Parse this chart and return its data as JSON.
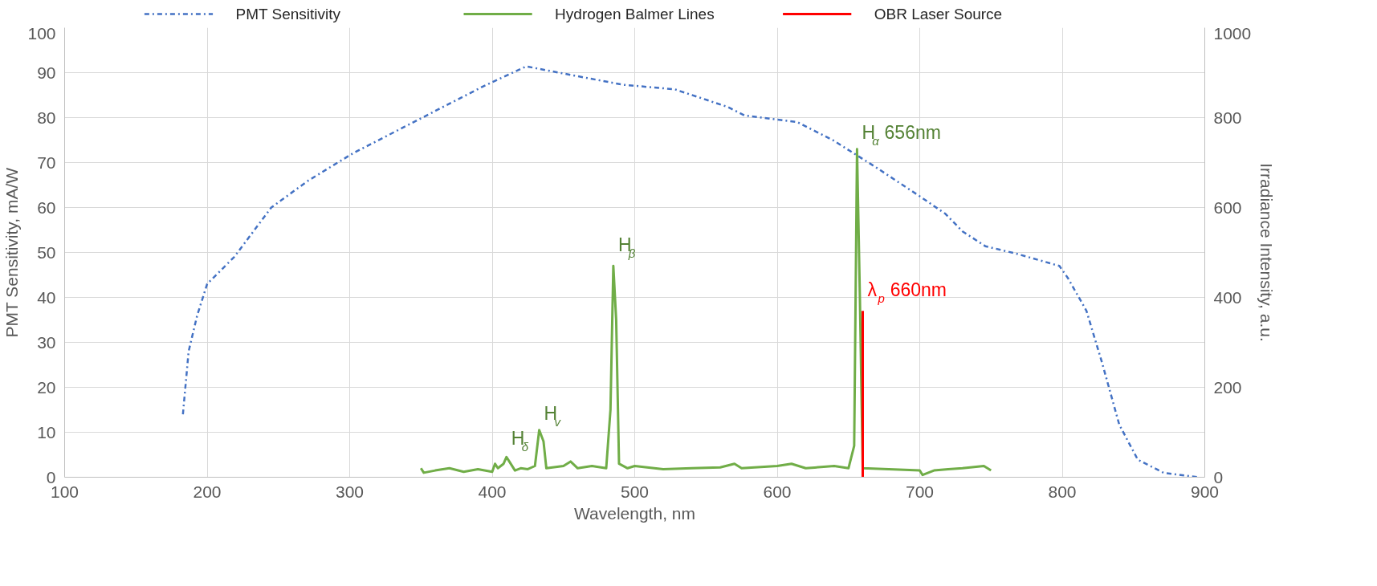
{
  "chart_data": {
    "type": "line",
    "xlabel": "Wavelength, nm",
    "ylabel": "PMT Sensitivity, mA/W",
    "y2label": "Irradiance Intensity, a.u.",
    "xlim": [
      100,
      900
    ],
    "xticks": [
      100,
      200,
      300,
      400,
      500,
      600,
      700,
      800,
      900
    ],
    "ylim": [
      0,
      100
    ],
    "yticks": [
      0,
      10,
      20,
      30,
      40,
      50,
      60,
      70,
      80,
      90,
      100
    ],
    "y2lim": [
      0,
      1000
    ],
    "y2ticks": [
      0,
      200,
      400,
      600,
      800,
      1000
    ],
    "grid": true,
    "legend": "top",
    "series": [
      {
        "name": "PMT Sensitivity",
        "color": "#4472c4",
        "line_style": "dashdot",
        "x": [
          183,
          187,
          193,
          200,
          219,
          245,
          271,
          302,
          351,
          394,
          424,
          455,
          492,
          528,
          565,
          577,
          614,
          639,
          669,
          700,
          718,
          730,
          746,
          767,
          798,
          804,
          817,
          828,
          840,
          853,
          871,
          896
        ],
        "values": [
          14,
          28,
          36,
          43,
          49,
          60,
          66,
          72,
          80,
          87,
          91.4,
          89.5,
          87.3,
          86.3,
          82.4,
          80.5,
          79,
          75,
          69,
          62.5,
          58.6,
          54.7,
          51.4,
          49.8,
          47,
          44.3,
          37,
          25.4,
          11.7,
          3.9,
          1,
          0
        ]
      },
      {
        "name": "Hydrogen Balmer Lines",
        "color": "#70ad47",
        "axis": "y2",
        "line_style": "solid",
        "x": [
          350,
          352,
          360,
          370,
          380,
          390,
          400,
          402,
          404,
          408,
          410,
          412,
          416,
          420,
          425,
          430,
          433,
          436,
          438,
          450,
          455,
          460,
          470,
          480,
          483,
          485,
          487,
          489,
          495,
          500,
          520,
          540,
          560,
          570,
          575,
          600,
          610,
          620,
          640,
          650,
          654,
          656,
          658,
          660,
          700,
          702,
          710,
          720,
          730,
          745,
          750
        ],
        "values": [
          20,
          10,
          15,
          20,
          12,
          18,
          12,
          30,
          20,
          30,
          45,
          35,
          15,
          20,
          18,
          25,
          105,
          80,
          20,
          25,
          35,
          20,
          25,
          20,
          150,
          470,
          350,
          30,
          20,
          25,
          18,
          20,
          22,
          30,
          20,
          25,
          30,
          20,
          25,
          20,
          70,
          730,
          400,
          20,
          15,
          5,
          15,
          18,
          20,
          25,
          15
        ]
      },
      {
        "name": "OBR Laser Source",
        "color": "#ff0000",
        "axis": "y2",
        "line_style": "solid",
        "x": [
          660,
          660
        ],
        "values": [
          0,
          370
        ]
      }
    ],
    "annotations": [
      {
        "text": "H$_{δ}$",
        "x": 410,
        "y": 5
      },
      {
        "text": "H$_{v}$",
        "x": 433,
        "y": 10.5
      },
      {
        "text": "H$_{β}$",
        "x": 485,
        "y": 48
      },
      {
        "text": "H$_{α}$ 656nm",
        "x": 656,
        "y": 73
      },
      {
        "text": "λ$_{p}$ 660nm",
        "x": 660,
        "y": 38
      }
    ]
  }
}
